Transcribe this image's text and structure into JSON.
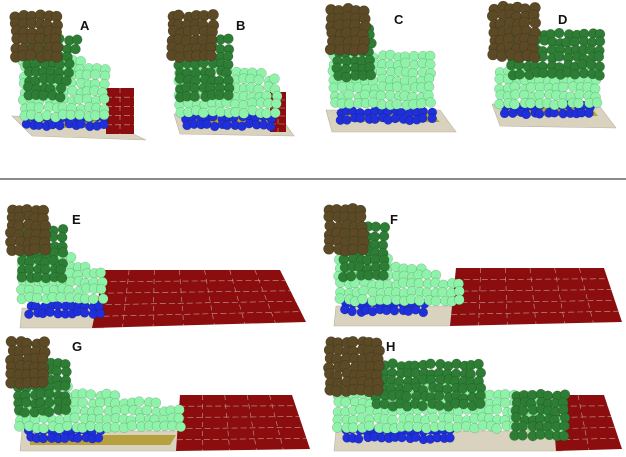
{
  "panels": [
    {
      "label": "A"
    },
    {
      "label": "B"
    },
    {
      "label": "C"
    },
    {
      "label": "D"
    },
    {
      "label": "E"
    },
    {
      "label": "F"
    },
    {
      "label": "G"
    },
    {
      "label": "H"
    }
  ],
  "colors": {
    "bead_dark_brown": "#5b4a25",
    "bead_dark_green": "#2e7d35",
    "bead_light_green": "#8ef2a8",
    "bead_blue": "#1f2fd9",
    "plate_beige": "#d8d2bf",
    "plate_gold": "#b7a040",
    "grid_red": "#8b0d0d",
    "divider": "#8a8a8a"
  }
}
